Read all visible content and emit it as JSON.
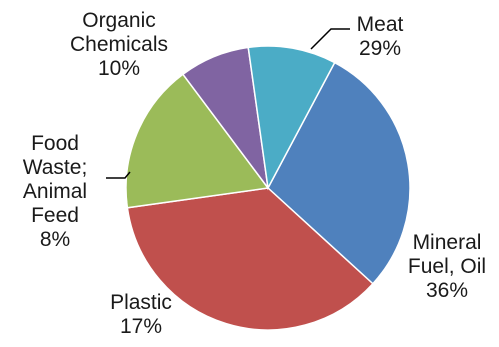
{
  "chart_data": {
    "type": "pie",
    "slices": [
      {
        "name": "Meat",
        "value": 29,
        "color": "#4f81bd",
        "label_lines": [
          "Meat",
          "29%"
        ]
      },
      {
        "name": "Mineral Fuel, Oil",
        "value": 36,
        "color": "#c0504d",
        "label_lines": [
          "Mineral",
          "Fuel, Oil",
          "36%"
        ]
      },
      {
        "name": "Plastic",
        "value": 17,
        "color": "#9bbb59",
        "label_lines": [
          "Plastic",
          "17%"
        ]
      },
      {
        "name": "Food Waste; Animal Feed",
        "value": 8,
        "color": "#8064a2",
        "label_lines": [
          "Food",
          "Waste;",
          "Animal",
          "Feed",
          "8%"
        ]
      },
      {
        "name": "Organic Chemicals",
        "value": 10,
        "color": "#4bacc6",
        "label_lines": [
          "Organic",
          "Chemicals",
          "10%"
        ]
      }
    ],
    "start_angle_deg": -62,
    "direction": "clockwise",
    "legend": "none",
    "title": ""
  }
}
